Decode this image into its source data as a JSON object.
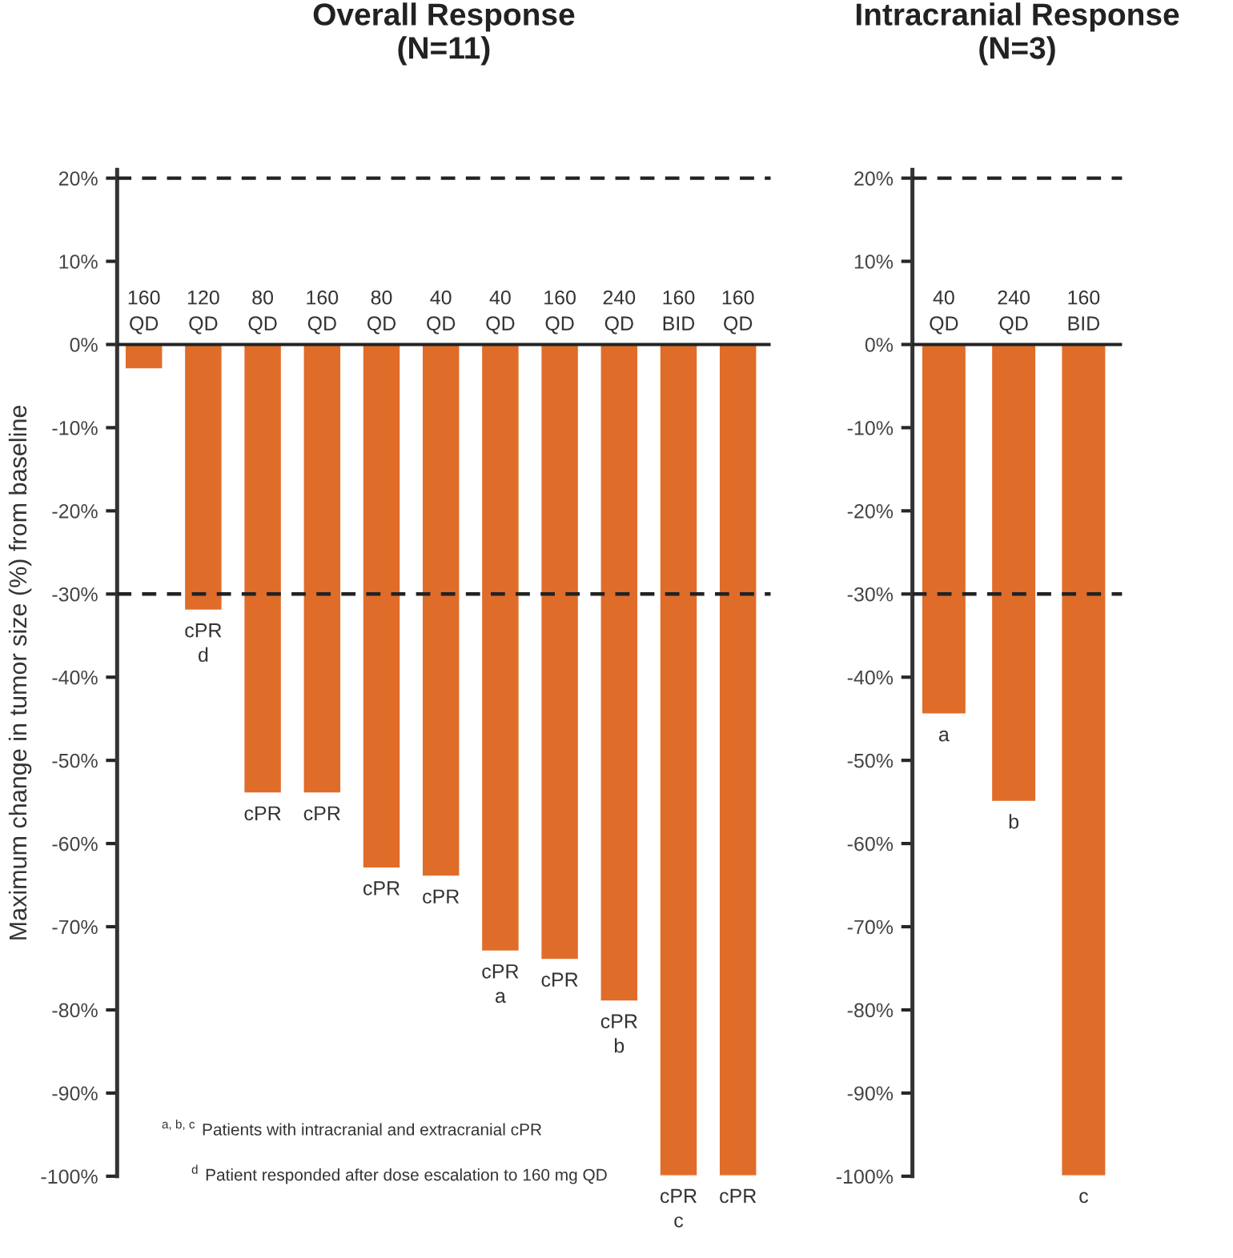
{
  "chart_data": [
    {
      "type": "bar",
      "title": "Overall Response\n(N=11)",
      "ylabel": "Maximum change in tumor size (%) from baseline",
      "categories": [
        "160\nQD",
        "120\nQD",
        "80\nQD",
        "160\nQD",
        "80\nQD",
        "40\nQD",
        "40\nQD",
        "160\nQD",
        "240\nQD",
        "160\nBID",
        "160\nQD"
      ],
      "values": [
        -3,
        -32,
        -54,
        -54,
        -63,
        -64,
        -73,
        -74,
        -79,
        -100,
        -100
      ],
      "value_labels": [
        null,
        "cPR\nd",
        "cPR",
        "cPR",
        "cPR",
        "cPR",
        "cPR\na",
        "cPR",
        "cPR\nb",
        "cPR\nc",
        "cPR"
      ],
      "color": "#e06c2a",
      "ylim": [
        -100,
        21
      ],
      "yticks": [
        {
          "value": 20,
          "label": "20%"
        },
        {
          "value": 10,
          "label": "10%"
        },
        {
          "value": 0,
          "label": "0%"
        },
        {
          "value": -10,
          "label": "-10%"
        },
        {
          "value": -20,
          "label": "-20%"
        },
        {
          "value": -30,
          "label": "-30%"
        },
        {
          "value": -40,
          "label": "-40%"
        },
        {
          "value": -50,
          "label": "-50%"
        },
        {
          "value": -60,
          "label": "-60%"
        },
        {
          "value": -70,
          "label": "-70%"
        },
        {
          "value": -80,
          "label": "-80%"
        },
        {
          "value": -90,
          "label": "-90%"
        },
        {
          "value": -100,
          "label": "-100%"
        }
      ],
      "ref_lines": [
        {
          "axis": "y",
          "value": 20,
          "line_style": "dashed"
        },
        {
          "axis": "y",
          "value": -30,
          "line_style": "dashed"
        }
      ],
      "annotations": [
        "$^{a, b, c}$ Patients with intracranial and extracranial cPR",
        "$^{d}$ Patient responded after dose escalation to 160 mg QD"
      ],
      "grid": false,
      "legend": false
    },
    {
      "type": "bar",
      "title": "Intracranial Response\n(N=3)",
      "categories": [
        "40\nQD",
        "240\nQD",
        "160\nBID"
      ],
      "values": [
        -44.5,
        -55,
        -100
      ],
      "value_labels": [
        "a",
        "b",
        "c"
      ],
      "color": "#e06c2a",
      "ylim": [
        -100,
        21
      ],
      "yticks": [
        {
          "value": 20,
          "label": "20%"
        },
        {
          "value": 10,
          "label": "10%"
        },
        {
          "value": 0,
          "label": "0%"
        },
        {
          "value": -10,
          "label": "-10%"
        },
        {
          "value": -20,
          "label": "-20%"
        },
        {
          "value": -30,
          "label": "-30%"
        },
        {
          "value": -40,
          "label": "-40%"
        },
        {
          "value": -50,
          "label": "-50%"
        },
        {
          "value": -60,
          "label": "-60%"
        },
        {
          "value": -70,
          "label": "-70%"
        },
        {
          "value": -80,
          "label": "-80%"
        },
        {
          "value": -90,
          "label": "-90%"
        },
        {
          "value": -100,
          "label": "-100%"
        }
      ],
      "ref_lines": [
        {
          "axis": "y",
          "value": 20,
          "line_style": "dashed"
        },
        {
          "axis": "y",
          "value": -30,
          "line_style": "dashed"
        }
      ],
      "grid": false,
      "legend": false
    }
  ]
}
